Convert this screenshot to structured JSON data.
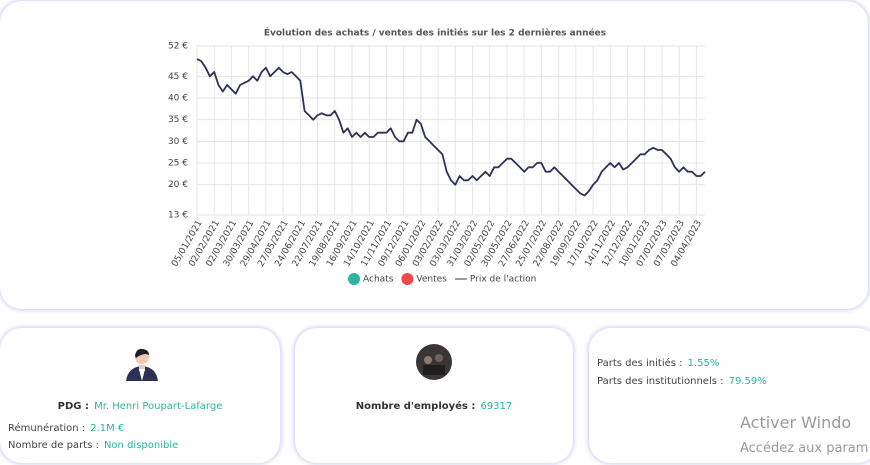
{
  "chart_data": {
    "type": "line",
    "title": "Évolution des achats / ventes des initiés sur les 2 dernières années",
    "categories": [
      "05/01/2021",
      null,
      null,
      null,
      "02/02/2021",
      null,
      null,
      null,
      "02/03/2021",
      null,
      null,
      null,
      "30/03/2021",
      null,
      null,
      null,
      "29/04/2021",
      null,
      null,
      null,
      "27/05/2021",
      null,
      null,
      null,
      "24/06/2021",
      null,
      null,
      null,
      "22/07/2021",
      null,
      null,
      null,
      "19/08/2021",
      null,
      null,
      null,
      "16/09/2021",
      null,
      null,
      null,
      "14/10/2021",
      null,
      null,
      null,
      "11/11/2021",
      null,
      null,
      null,
      "09/12/2021",
      null,
      null,
      null,
      "06/01/2022",
      null,
      null,
      null,
      "03/02/2022",
      null,
      null,
      null,
      "03/03/2022",
      null,
      null,
      null,
      "31/03/2022",
      null,
      null,
      null,
      "02/05/2022",
      null,
      null,
      null,
      "30/05/2022",
      null,
      null,
      null,
      "27/06/2022",
      null,
      null,
      null,
      "25/07/2022",
      null,
      null,
      null,
      "22/08/2022",
      null,
      null,
      null,
      "19/09/2022",
      null,
      null,
      null,
      "17/10/2022",
      null,
      null,
      null,
      "14/11/2022",
      null,
      null,
      null,
      "12/12/2022",
      null,
      null,
      null,
      "10/01/2023",
      null,
      null,
      null,
      "07/02/2023",
      null,
      null,
      null,
      "07/03/2023",
      null,
      null,
      null,
      "04/04/2023",
      null,
      null
    ],
    "series": [
      {
        "name": "Prix de l'action",
        "color": "#2e3156",
        "values": [
          49,
          48.5,
          47,
          45,
          46,
          43,
          41.5,
          43,
          42,
          41,
          43,
          43.5,
          44,
          45,
          44,
          46,
          47,
          45,
          46,
          47,
          46,
          45.5,
          46,
          45,
          44,
          37,
          36,
          35,
          36,
          36.5,
          36,
          36,
          37,
          35,
          32,
          33,
          31,
          32,
          31,
          32,
          31,
          31,
          32,
          32,
          32,
          33,
          31,
          30,
          30,
          32,
          32,
          35,
          34,
          31,
          30,
          29,
          28,
          27,
          23,
          21,
          20,
          22,
          21,
          21,
          22,
          21,
          22,
          23,
          22,
          24,
          24,
          25,
          26,
          26,
          25,
          24,
          23,
          24,
          24,
          25,
          25,
          23,
          23,
          24,
          23,
          22,
          21,
          20,
          19,
          18,
          17.5,
          18.5,
          20,
          21,
          23,
          24,
          25,
          24,
          25,
          23.5,
          24,
          25,
          26,
          27,
          27,
          28,
          28.5,
          28,
          28,
          27,
          26,
          24,
          23,
          24,
          23,
          23,
          22,
          22,
          23
        ]
      }
    ],
    "markers": [
      {
        "name": "Achats",
        "color": "#2bb5a0"
      },
      {
        "name": "Ventes",
        "color": "#f0474c"
      }
    ],
    "ylim": [
      13,
      52
    ],
    "yticks": [
      {
        "value": 13,
        "label": "13 €"
      },
      {
        "value": 20,
        "label": "20 €"
      },
      {
        "value": 25,
        "label": "25 €"
      },
      {
        "value": 30,
        "label": "30 €"
      },
      {
        "value": 35,
        "label": "35 €"
      },
      {
        "value": 40,
        "label": "40 €"
      },
      {
        "value": 45,
        "label": "45 €"
      },
      {
        "value": 52,
        "label": "52 €"
      }
    ],
    "grid": true
  },
  "cards": [
    {
      "heading_label": "PDG :",
      "heading_value": "Mr. Henri Poupart-Lafarge",
      "rows": [
        [
          "Rémunération :",
          "2.1M €"
        ],
        [
          "Nombre de parts :",
          "Non disponible"
        ]
      ]
    },
    {
      "heading_label": "Nombre d'employés :",
      "heading_value": "69317"
    },
    {
      "rows": [
        [
          "Parts des initiés :",
          "1.55%"
        ],
        [
          "Parts des institutionnels :",
          "79.59%"
        ]
      ]
    }
  ],
  "watermark": {
    "line1": "Activer Windo",
    "line2": "Accédez aux param"
  }
}
